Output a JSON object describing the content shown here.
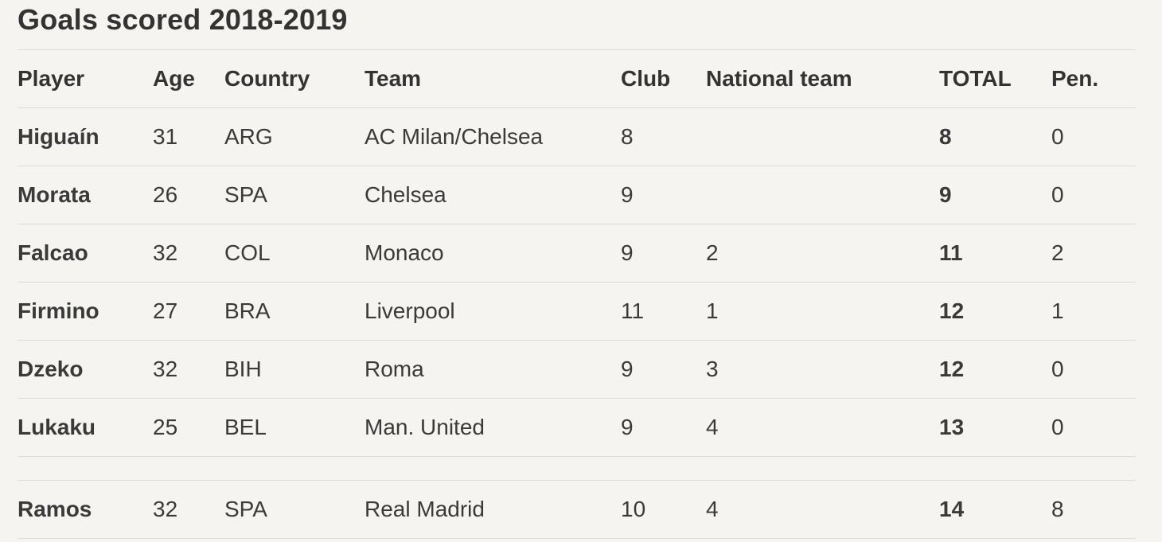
{
  "title": "Goals scored 2018-2019",
  "columns": [
    "Player",
    "Age",
    "Country",
    "Team",
    "Club",
    "National team",
    "TOTAL",
    "Pen."
  ],
  "rows": [
    {
      "player": "Higuaín",
      "age": "31",
      "country": "ARG",
      "team": "AC Milan/Chelsea",
      "club": "8",
      "national": "",
      "total": "8",
      "pen": "0"
    },
    {
      "player": "Morata",
      "age": "26",
      "country": "SPA",
      "team": "Chelsea",
      "club": "9",
      "national": "",
      "total": "9",
      "pen": "0"
    },
    {
      "player": "Falcao",
      "age": "32",
      "country": "COL",
      "team": "Monaco",
      "club": "9",
      "national": "2",
      "total": "11",
      "pen": "2"
    },
    {
      "player": "Firmino",
      "age": "27",
      "country": "BRA",
      "team": "Liverpool",
      "club": "11",
      "national": "1",
      "total": "12",
      "pen": "1"
    },
    {
      "player": "Dzeko",
      "age": "32",
      "country": "BIH",
      "team": "Roma",
      "club": "9",
      "national": "3",
      "total": "12",
      "pen": "0"
    },
    {
      "player": "Lukaku",
      "age": "25",
      "country": "BEL",
      "team": "Man. United",
      "club": "9",
      "national": "4",
      "total": "13",
      "pen": "0"
    },
    {
      "player": "Ramos",
      "age": "32",
      "country": "SPA",
      "team": "Real Madrid",
      "club": "10",
      "national": "4",
      "total": "14",
      "pen": "8"
    }
  ]
}
